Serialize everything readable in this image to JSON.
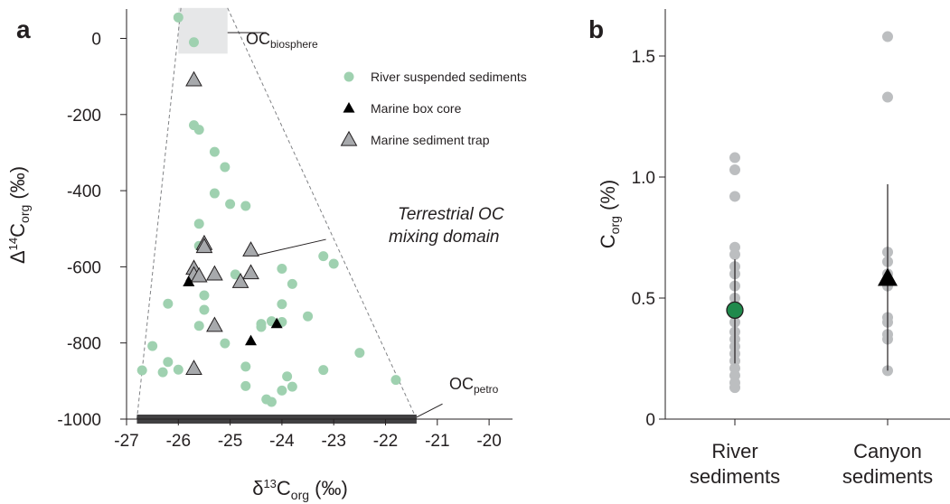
{
  "figure": {
    "panel_a_letter": "a",
    "panel_b_letter": "b"
  },
  "colors": {
    "river_green": "#9fd1b0",
    "marine_box_core": "#000000",
    "marine_trap_fill": "#a7a9ac",
    "petro_bar": "#414042",
    "biosphere_box": "#e6e7e8",
    "panel_b_grey": "#bcbec0",
    "river_mean_green": "#1f8a4c",
    "axis": "#231f20"
  },
  "chart_data": [
    {
      "type": "scatter",
      "xlabel_parts": {
        "pre": "δ",
        "sup": "13",
        "base": "C",
        "sub": "org",
        "post": " (‰)"
      },
      "ylabel_parts": {
        "pre": "Δ",
        "sup": "14",
        "base": "C",
        "sub": "org",
        "post": " (‰)"
      },
      "xlim": [
        -27,
        -19.5
      ],
      "ylim": [
        -1000,
        80
      ],
      "xticks": [
        -27,
        -26,
        -25,
        -24,
        -23,
        -22,
        -21,
        -20
      ],
      "xtick_labels": [
        "-27",
        "-26",
        "-25",
        "-24",
        "-23",
        "-22",
        "-21",
        "-20"
      ],
      "yticks": [
        0,
        -200,
        -400,
        -600,
        -800,
        -1000
      ],
      "ytick_labels": [
        "0",
        "-200",
        "-400",
        "-600",
        "-800",
        "-1000"
      ],
      "legend_placement": "top-right",
      "series": [
        {
          "name": "River suspended sediments",
          "marker": "circle",
          "points": [
            [
              -26.0,
              55
            ],
            [
              -25.7,
              -10
            ],
            [
              -25.7,
              -228
            ],
            [
              -25.6,
              -240
            ],
            [
              -25.3,
              -298
            ],
            [
              -25.1,
              -338
            ],
            [
              -25.3,
              -407
            ],
            [
              -25.0,
              -435
            ],
            [
              -24.7,
              -440
            ],
            [
              -25.6,
              -487
            ],
            [
              -25.6,
              -545
            ],
            [
              -24.0,
              -605
            ],
            [
              -23.8,
              -645
            ],
            [
              -23.2,
              -572
            ],
            [
              -23.0,
              -592
            ],
            [
              -24.9,
              -620
            ],
            [
              -25.5,
              -675
            ],
            [
              -24.0,
              -698
            ],
            [
              -23.5,
              -730
            ],
            [
              -25.5,
              -713
            ],
            [
              -24.4,
              -750
            ],
            [
              -24.4,
              -758
            ],
            [
              -24.2,
              -743
            ],
            [
              -24.0,
              -745
            ],
            [
              -26.2,
              -697
            ],
            [
              -25.6,
              -755
            ],
            [
              -25.1,
              -801
            ],
            [
              -26.5,
              -808
            ],
            [
              -26.3,
              -877
            ],
            [
              -26.2,
              -850
            ],
            [
              -26.0,
              -870
            ],
            [
              -26.7,
              -872
            ],
            [
              -24.7,
              -862
            ],
            [
              -24.7,
              -913
            ],
            [
              -24.3,
              -948
            ],
            [
              -24.2,
              -955
            ],
            [
              -24.0,
              -925
            ],
            [
              -23.9,
              -888
            ],
            [
              -23.8,
              -915
            ],
            [
              -23.2,
              -871
            ],
            [
              -22.5,
              -826
            ],
            [
              -21.8,
              -897
            ]
          ]
        },
        {
          "name": "Marine box core",
          "marker": "triangle",
          "points": [
            [
              -25.8,
              -640
            ],
            [
              -24.6,
              -795
            ],
            [
              -24.1,
              -750
            ]
          ]
        },
        {
          "name": "Marine sediment trap",
          "marker": "triangle",
          "points": [
            [
              -25.7,
              -110
            ],
            [
              -25.5,
              -540
            ],
            [
              -25.5,
              -548
            ],
            [
              -24.6,
              -557
            ],
            [
              -25.7,
              -605
            ],
            [
              -25.7,
              -622
            ],
            [
              -25.6,
              -625
            ],
            [
              -25.3,
              -620
            ],
            [
              -24.6,
              -617
            ],
            [
              -24.8,
              -640
            ],
            [
              -25.3,
              -755
            ],
            [
              -25.7,
              -868
            ]
          ]
        }
      ],
      "annotations": {
        "oc_biosphere": {
          "base": "OC",
          "sub": "biosphere"
        },
        "oc_petro": {
          "base": "OC",
          "sub": "petro"
        },
        "mixing_domain_line1": "Terrestrial OC",
        "mixing_domain_line2": "mixing domain",
        "biosphere_box": {
          "x": [
            -26.0,
            -25.05
          ],
          "y": [
            -40,
            80
          ]
        },
        "petro_bar": {
          "x": [
            -26.8,
            -21.4
          ],
          "y": -1000
        },
        "mixing_polygon": [
          [
            -25.95,
            80
          ],
          [
            -25.05,
            80
          ],
          [
            -21.4,
            -1000
          ],
          [
            -26.8,
            -1000
          ]
        ],
        "mixing_label_anchor": [
          -23.1,
          -535
        ],
        "mixing_label_pointer": [
          [
            -23.15,
            -528
          ],
          [
            -24.5,
            -570
          ]
        ],
        "biosphere_pointer": [
          [
            -25.05,
            15
          ],
          [
            -24.3,
            15
          ]
        ],
        "petro_pointer": [
          [
            -21.4,
            -995
          ],
          [
            -20.9,
            -960
          ]
        ]
      }
    },
    {
      "type": "scatter",
      "ylabel_parts": {
        "base": "C",
        "sub": "org",
        "post": " (%)"
      },
      "ylim": [
        0,
        1.7
      ],
      "yticks": [
        0,
        0.5,
        1.0,
        1.5
      ],
      "ytick_labels": [
        "0",
        "0.5",
        "1.0",
        "1.5"
      ],
      "categories": [
        {
          "line1": "River",
          "line2": "sediments"
        },
        {
          "line1": "Canyon",
          "line2": "sediments"
        }
      ],
      "series": [
        {
          "name": "River sediments",
          "values": [
            1.08,
            1.03,
            0.92,
            0.71,
            0.68,
            0.63,
            0.6,
            0.55,
            0.5,
            0.47,
            0.44,
            0.4,
            0.36,
            0.33,
            0.3,
            0.27,
            0.24,
            0.21,
            0.18,
            0.15,
            0.13
          ],
          "mean": 0.45,
          "whisker": [
            0.23,
            0.66
          ]
        },
        {
          "name": "Canyon sediments",
          "values": [
            1.58,
            1.33,
            0.69,
            0.65,
            0.6,
            0.55,
            0.42,
            0.4,
            0.35,
            0.33,
            0.2
          ],
          "mean": 0.58,
          "whisker": [
            0.2,
            0.97
          ]
        }
      ]
    }
  ]
}
